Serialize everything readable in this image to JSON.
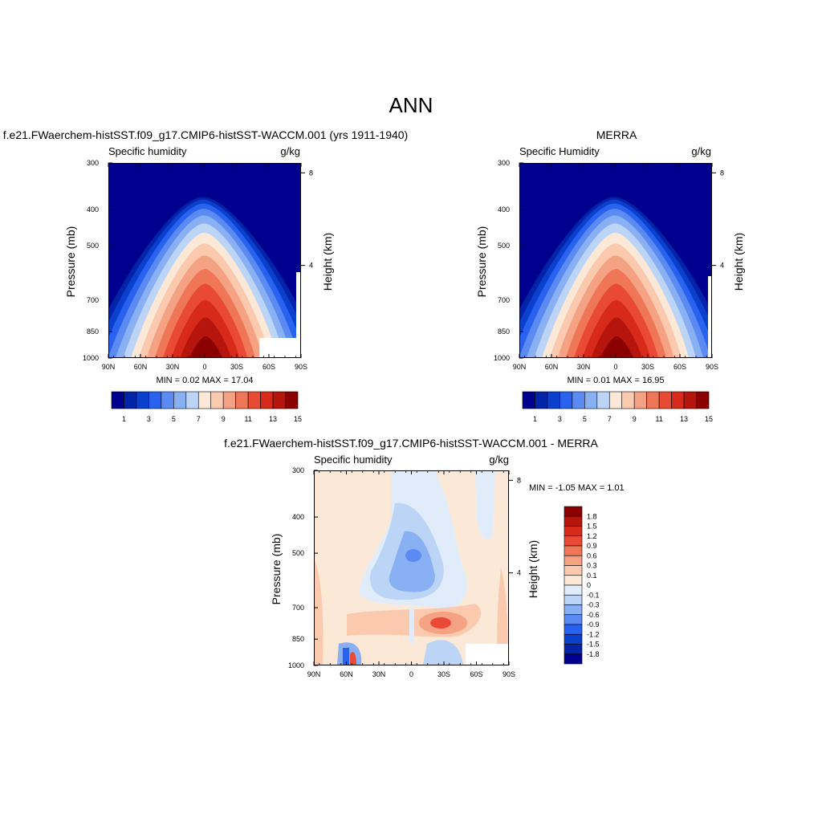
{
  "figure_title": "ANN",
  "colors": {
    "seq": [
      "#00008f",
      "#0324a8",
      "#0b40cf",
      "#2a62f0",
      "#5a8af2",
      "#8ab0f4",
      "#bcd5f7",
      "#fce8d7",
      "#fac9ae",
      "#f5a183",
      "#f07658",
      "#e94a35",
      "#d72a1a",
      "#b5150c",
      "#8b0000"
    ],
    "diff": [
      "#00008f",
      "#0324a8",
      "#0b40cf",
      "#2a62f0",
      "#5a8af2",
      "#8ab0f4",
      "#bcd5f7",
      "#e1ecfb",
      "#fce8d7",
      "#fac9ae",
      "#f5a183",
      "#f07658",
      "#e94a35",
      "#d72a1a",
      "#b5150c",
      "#8b0000"
    ]
  },
  "panels": [
    {
      "title": "f.e21.FWaerchem-histSST.f09_g17.CMIP6-histSST-WACCM.001 (yrs 1911-1940)",
      "left_label": "Specific humidity",
      "right_label": "g/kg",
      "stats": "MIN =   0.02  MAX =  17.04",
      "ylabel": "Pressure (mb)",
      "y2label": "Height (km)"
    },
    {
      "title": "MERRA",
      "left_label": "Specific Humidity",
      "right_label": "g/kg",
      "stats": "MIN =   0.01  MAX =  16.95",
      "ylabel": "Pressure (mb)",
      "y2label": "Height (km)"
    },
    {
      "title": "f.e21.FWaerchem-histSST.f09_g17.CMIP6-histSST-WACCM.001 - MERRA",
      "left_label": "Specific humidity",
      "right_label": "g/kg",
      "stats": "MIN =  -1.05  MAX =   1.01",
      "ylabel": "Pressure (mb)",
      "y2label": "Height (km)"
    }
  ],
  "chart_data": [
    {
      "type": "heatmap",
      "x_ticks": [
        "90N",
        "60N",
        "30N",
        "0",
        "30S",
        "60S",
        "90S"
      ],
      "y_ticks": [
        "300",
        "400",
        "500",
        "700",
        "850",
        "1000"
      ],
      "y_ticks_values": [
        300,
        400,
        500,
        700,
        850,
        1000
      ],
      "y2_ticks": [
        "8",
        "4"
      ],
      "y2_ticks_values": [
        8,
        4
      ],
      "ylim": [
        1000,
        300
      ],
      "colorbar_labels": [
        "1",
        "3",
        "5",
        "7",
        "9",
        "11",
        "13",
        "15"
      ],
      "max": 17.04,
      "min": 0.02
    },
    {
      "type": "heatmap",
      "x_ticks": [
        "90N",
        "60N",
        "30N",
        "0",
        "30S",
        "60S",
        "90S"
      ],
      "y_ticks": [
        "300",
        "400",
        "500",
        "700",
        "850",
        "1000"
      ],
      "y_ticks_values": [
        300,
        400,
        500,
        700,
        850,
        1000
      ],
      "y2_ticks": [
        "8",
        "4"
      ],
      "y2_ticks_values": [
        8,
        4
      ],
      "ylim": [
        1000,
        300
      ],
      "colorbar_labels": [
        "1",
        "3",
        "5",
        "7",
        "9",
        "11",
        "13",
        "15"
      ],
      "max": 16.95,
      "min": 0.01
    },
    {
      "type": "heatmap",
      "x_ticks": [
        "90N",
        "60N",
        "30N",
        "0",
        "30S",
        "60S",
        "90S"
      ],
      "y_ticks": [
        "300",
        "400",
        "500",
        "700",
        "850",
        "1000"
      ],
      "y_ticks_values": [
        300,
        400,
        500,
        700,
        850,
        1000
      ],
      "y2_ticks": [
        "8",
        "4"
      ],
      "y2_ticks_values": [
        8,
        4
      ],
      "ylim": [
        1000,
        300
      ],
      "colorbar_labels": [
        "1.8",
        "1.5",
        "1.2",
        "0.9",
        "0.6",
        "0.3",
        "0.1",
        "0",
        "-0.1",
        "-0.3",
        "-0.6",
        "-0.9",
        "-1.2",
        "-1.5",
        "-1.8"
      ],
      "max": 1.01,
      "min": -1.05
    }
  ]
}
